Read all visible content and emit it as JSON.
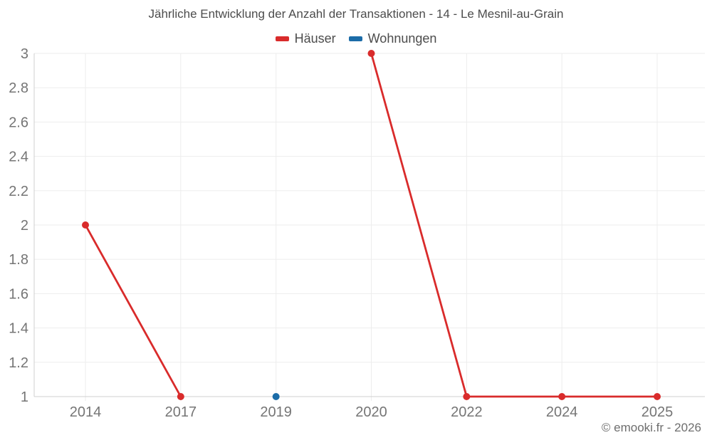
{
  "chart_data": {
    "type": "line",
    "title": "Jährliche Entwicklung der Anzahl der Transaktionen - 14 - Le Mesnil-au-Grain",
    "categories": [
      "2014",
      "2017",
      "2019",
      "2020",
      "2022",
      "2024",
      "2025"
    ],
    "series": [
      {
        "name": "Häuser",
        "color": "#d92b2b",
        "values": [
          2,
          1,
          null,
          3,
          1,
          1,
          1
        ]
      },
      {
        "name": "Wohnungen",
        "color": "#1b6ca8",
        "values": [
          null,
          null,
          1,
          null,
          null,
          null,
          null
        ]
      }
    ],
    "xlabel": "",
    "ylabel": "",
    "ylim": [
      1,
      3
    ],
    "ytick_step": 0.2,
    "ytick_labels": [
      "1",
      "1.2",
      "1.4",
      "1.6",
      "1.8",
      "2",
      "2.2",
      "2.4",
      "2.6",
      "2.8",
      "3"
    ],
    "grid": true,
    "legend_position": "top"
  },
  "footer": {
    "copyright": "© emooki.fr - 2026"
  },
  "colors": {
    "grid_line": "#ededed",
    "axis_line": "#cfcfcf",
    "axis_text": "#757575",
    "title_text": "#4c4c4c"
  }
}
